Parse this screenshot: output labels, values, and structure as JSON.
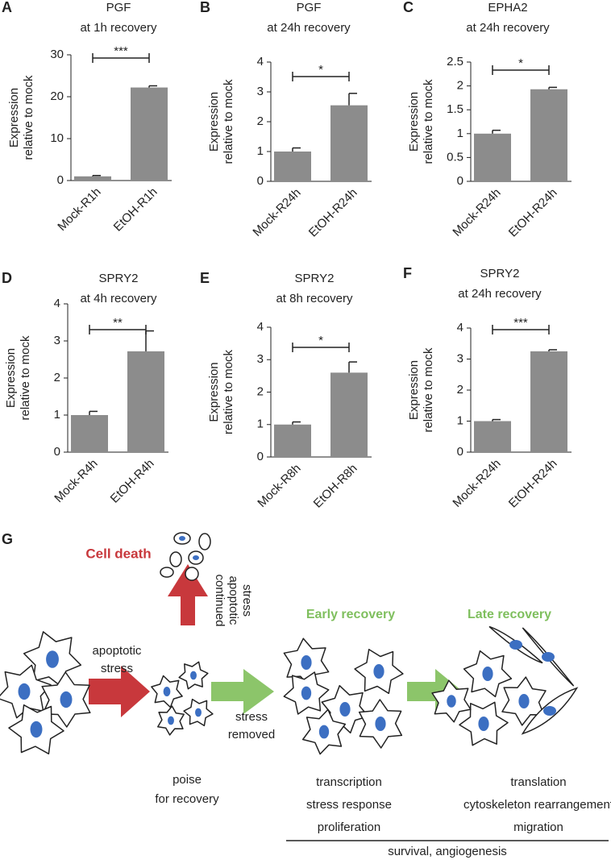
{
  "chart_data": [
    {
      "type": "bar",
      "panel": "A",
      "title": "PGF",
      "subtitle": "at 1h recovery",
      "ylabel": [
        "Expression",
        "relative to mock"
      ],
      "categories": [
        "Mock-R1h",
        "EtOH-R1h"
      ],
      "values": [
        1,
        22.2
      ],
      "errors": [
        0.2,
        0.4
      ],
      "color": "#8c8c8c",
      "ylim": [
        0,
        30
      ],
      "yticks": [
        0,
        10,
        20,
        30
      ],
      "annotation": "***"
    },
    {
      "type": "bar",
      "panel": "B",
      "title": "PGF",
      "subtitle": "at 24h recovery",
      "ylabel": [
        "Expression",
        "relative to mock"
      ],
      "categories": [
        "Mock-R24h",
        "EtOH-R24h"
      ],
      "values": [
        1,
        2.55
      ],
      "errors": [
        0.12,
        0.4
      ],
      "color": "#8c8c8c",
      "ylim": [
        0,
        4
      ],
      "yticks": [
        0,
        1,
        2,
        3,
        4
      ],
      "annotation": "*"
    },
    {
      "type": "bar",
      "panel": "C",
      "title": "EPHA2",
      "subtitle": "at 24h recovery",
      "ylabel": [
        "Expression",
        "relative to mock"
      ],
      "categories": [
        "Mock-R24h",
        "EtOH-R24h"
      ],
      "values": [
        1,
        1.93
      ],
      "errors": [
        0.07,
        0.04
      ],
      "color": "#8c8c8c",
      "ylim": [
        0,
        2.5
      ],
      "yticks": [
        0,
        0.5,
        1,
        1.5,
        2,
        2.5
      ],
      "annotation": "*"
    },
    {
      "type": "bar",
      "panel": "D",
      "title": "SPRY2",
      "subtitle": "at 4h recovery",
      "ylabel": [
        "Expression",
        "relative to mock"
      ],
      "categories": [
        "Mock-R4h",
        "EtOH-R4h"
      ],
      "values": [
        1,
        2.72
      ],
      "errors": [
        0.1,
        0.55
      ],
      "color": "#8c8c8c",
      "ylim": [
        0,
        4
      ],
      "yticks": [
        0,
        1,
        2,
        3,
        4
      ],
      "annotation": "**"
    },
    {
      "type": "bar",
      "panel": "E",
      "title": "SPRY2",
      "subtitle": "at 8h recovery",
      "ylabel": [
        "Expression",
        "relative to mock"
      ],
      "categories": [
        "Mock-R8h",
        "EtOH-R8h"
      ],
      "values": [
        1,
        2.6
      ],
      "errors": [
        0.08,
        0.33
      ],
      "color": "#8c8c8c",
      "ylim": [
        0,
        4
      ],
      "yticks": [
        0,
        1,
        2,
        3,
        4
      ],
      "annotation": "*"
    },
    {
      "type": "bar",
      "panel": "F",
      "title": "SPRY2",
      "subtitle": "at 24h recovery",
      "ylabel": [
        "Expression",
        "relative to mock"
      ],
      "categories": [
        "Mock-R24h",
        "EtOH-R24h"
      ],
      "values": [
        1,
        3.25
      ],
      "errors": [
        0.05,
        0.05
      ],
      "color": "#8c8c8c",
      "ylim": [
        0,
        4
      ],
      "yticks": [
        0,
        1,
        2,
        3,
        4
      ],
      "annotation": "***"
    }
  ],
  "diagram": {
    "panel": "G",
    "cell_death": "Cell death",
    "apoptotic_stress": [
      "apoptotic",
      "stress"
    ],
    "continued_stress": [
      "continued",
      "apoptotic",
      "stress"
    ],
    "stress_removed": [
      "stress",
      "removed"
    ],
    "early_recovery": "Early recovery",
    "late_recovery": "Late recovery",
    "poise": [
      "poise",
      "for recovery"
    ],
    "early_processes": [
      "transcription",
      "stress response",
      "proliferation"
    ],
    "late_processes": [
      "translation",
      "cytoskeleton rearrangement",
      "migration"
    ],
    "overall": "survival, angiogenesis"
  }
}
